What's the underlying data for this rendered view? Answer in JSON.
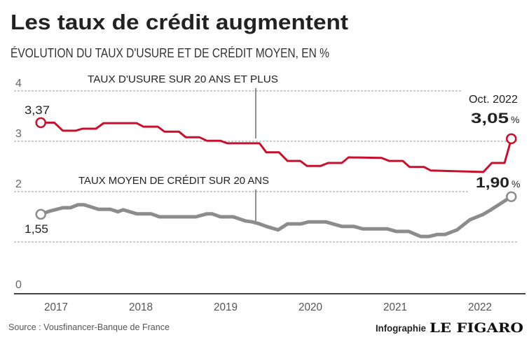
{
  "colors": {
    "usure": "#c8102e",
    "moyen": "#8c8c8c",
    "text": "#222222",
    "grid": "#9a9a9a"
  },
  "header": {
    "title": "Les taux de crédit augmentent",
    "subtitle": "ÉVOLUTION DU TAUX D'USURE ET DE CRÉDIT MOYEN, EN %"
  },
  "footer": {
    "source": "Source : Vousfinancer-Banque de France",
    "credit_prefix": "Infographie",
    "credit_brand": "LE FIGARO"
  },
  "chart_data": {
    "type": "line",
    "title": "Les taux de crédit augmentent",
    "subtitle": "ÉVOLUTION DU TAUX D'USURE ET DE CRÉDIT MOYEN, EN %",
    "xlabel": "",
    "ylabel": "%",
    "ylim": [
      0,
      4
    ],
    "xlim": [
      2017.3,
      2022.9
    ],
    "y_ticks": [
      0,
      1,
      2,
      3,
      4
    ],
    "y_tick_labels": [
      "0",
      "",
      "2",
      "3",
      "4"
    ],
    "x_ticks": [
      2017,
      2018,
      2019,
      2020,
      2021,
      2022
    ],
    "x_tick_labels": [
      "2017",
      "2018",
      "2019",
      "2020",
      "2021",
      "2022"
    ],
    "grid": true,
    "annotations": {
      "end_date": "Oct. 2022",
      "usure_start": "3,37",
      "usure_end": "3,05",
      "moyen_start": "1,55",
      "moyen_end": "1,90",
      "percent": "%"
    },
    "series": [
      {
        "name": "TAUX D'USURE SUR 20 ANS ET PLUS",
        "key": "usure",
        "x": [
          2017.32,
          2017.48,
          2017.58,
          2017.73,
          2017.81,
          2017.97,
          2018.06,
          2018.45,
          2018.53,
          2018.7,
          2018.78,
          2018.95,
          2019.03,
          2019.19,
          2019.28,
          2019.44,
          2019.52,
          2019.9,
          2019.98,
          2020.13,
          2020.23,
          2020.38,
          2020.46,
          2020.62,
          2020.71,
          2020.87,
          2020.95,
          2021.34,
          2021.43,
          2021.59,
          2021.67,
          2021.84,
          2021.92,
          2022.54,
          2022.64,
          2022.79,
          2022.87
        ],
        "y": [
          3.37,
          3.37,
          3.21,
          3.21,
          3.25,
          3.25,
          3.36,
          3.36,
          3.29,
          3.29,
          3.19,
          3.19,
          3.08,
          3.08,
          3.01,
          3.01,
          2.96,
          2.96,
          2.78,
          2.78,
          2.61,
          2.61,
          2.51,
          2.51,
          2.57,
          2.57,
          2.68,
          2.67,
          2.61,
          2.61,
          2.49,
          2.49,
          2.42,
          2.39,
          2.57,
          2.57,
          3.05
        ]
      },
      {
        "name": "TAUX MOYEN DE CRÉDIT SUR 20 ANS",
        "key": "moyen",
        "x": [
          2017.32,
          2017.42,
          2017.58,
          2017.67,
          2017.76,
          2017.83,
          2018.0,
          2018.14,
          2018.23,
          2018.29,
          2018.45,
          2018.62,
          2018.72,
          2019.15,
          2019.28,
          2019.34,
          2019.44,
          2019.59,
          2019.73,
          2019.81,
          2019.9,
          2019.98,
          2020.12,
          2020.23,
          2020.39,
          2020.48,
          2020.68,
          2020.87,
          2021.01,
          2021.12,
          2021.41,
          2021.51,
          2021.66,
          2021.8,
          2021.9,
          2022.0,
          2022.09,
          2022.23,
          2022.38,
          2022.54,
          2022.62,
          2022.87
        ],
        "y": [
          1.55,
          1.61,
          1.68,
          1.68,
          1.74,
          1.74,
          1.65,
          1.65,
          1.6,
          1.64,
          1.56,
          1.56,
          1.5,
          1.5,
          1.56,
          1.56,
          1.5,
          1.5,
          1.42,
          1.4,
          1.36,
          1.31,
          1.24,
          1.36,
          1.36,
          1.4,
          1.4,
          1.31,
          1.31,
          1.26,
          1.26,
          1.21,
          1.21,
          1.11,
          1.11,
          1.15,
          1.15,
          1.24,
          1.44,
          1.55,
          1.63,
          1.9
        ]
      }
    ]
  }
}
